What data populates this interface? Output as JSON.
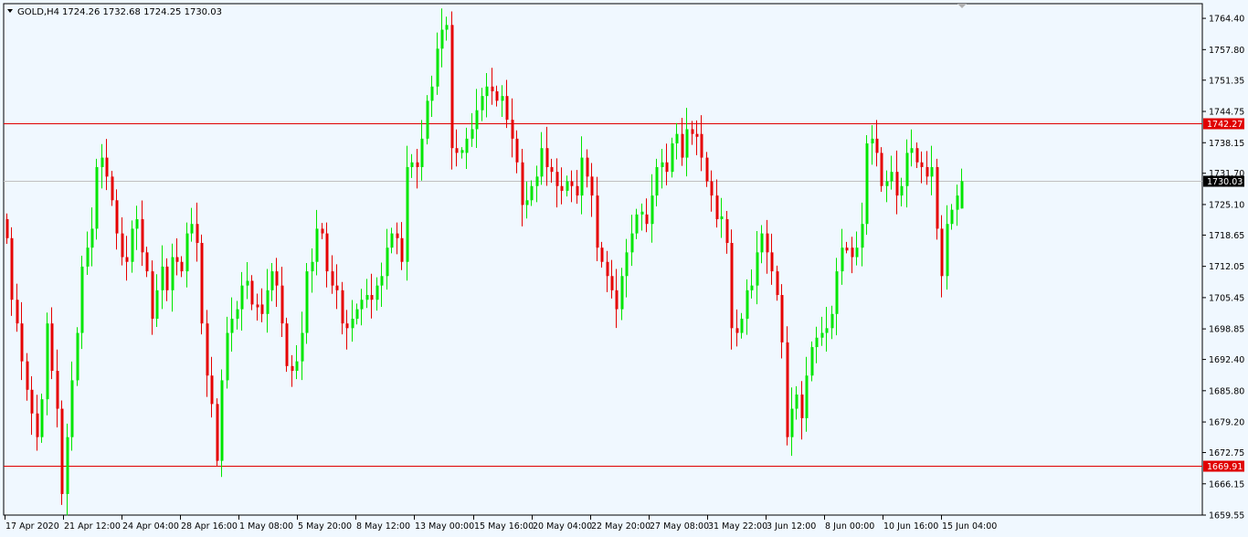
{
  "header": {
    "symbol": "GOLD,H4",
    "ohlc": "1724.26 1732.68 1724.25 1730.03"
  },
  "chart_data": {
    "type": "candlestick",
    "symbol": "GOLD",
    "timeframe": "H4",
    "ylim": [
      1659.55,
      1767.5
    ],
    "y_ticks": [
      1764.4,
      1757.8,
      1751.35,
      1744.75,
      1738.15,
      1731.7,
      1725.1,
      1718.65,
      1712.05,
      1705.45,
      1698.85,
      1692.4,
      1685.8,
      1679.2,
      1672.75,
      1666.15,
      1659.55
    ],
    "x_ticks": [
      "17 Apr 2020",
      "21 Apr 12:00",
      "24 Apr 04:00",
      "28 Apr 16:00",
      "1 May 08:00",
      "5 May 20:00",
      "8 May 12:00",
      "13 May 00:00",
      "15 May 16:00",
      "20 May 04:00",
      "22 May 20:00",
      "27 May 08:00",
      "31 May 22:00",
      "3 Jun 12:00",
      "8 Jun 00:00",
      "10 Jun 16:00",
      "15 Jun 04:00"
    ],
    "horizontal_lines": [
      {
        "price": 1742.27,
        "label": "1742.27",
        "color": "#e00000"
      },
      {
        "price": 1669.91,
        "label": "1669.91",
        "color": "#e00000"
      }
    ],
    "current_price": {
      "price": 1730.03,
      "label": "1730.03",
      "line_color": "#c0c0c0",
      "label_bg": "#000000"
    },
    "bull_color": "#00e600",
    "bear_color": "#e60000",
    "closes": [
      1718,
      1705,
      1700,
      1692,
      1686,
      1681,
      1676,
      1684,
      1700,
      1690,
      1682,
      1664,
      1676,
      1688,
      1698,
      1712,
      1716,
      1720,
      1733,
      1735,
      1731,
      1726,
      1719,
      1714,
      1713,
      1720,
      1722,
      1715,
      1711,
      1701,
      1707,
      1712,
      1707,
      1714,
      1713,
      1711,
      1719,
      1721,
      1717,
      1700,
      1689,
      1683,
      1671,
      1688,
      1698,
      1701,
      1703,
      1708,
      1709,
      1704,
      1704,
      1702,
      1707,
      1711,
      1708,
      1700,
      1691,
      1690,
      1692,
      1698,
      1711,
      1713,
      1720,
      1719,
      1711,
      1708,
      1707,
      1700,
      1699,
      1701,
      1703,
      1705,
      1706,
      1705,
      1708,
      1710,
      1716,
      1719,
      1718,
      1713,
      1733,
      1734,
      1733,
      1739,
      1747,
      1750,
      1758,
      1762,
      1763,
      1737,
      1736,
      1736,
      1739,
      1741,
      1745,
      1748,
      1750,
      1749,
      1747,
      1748,
      1743,
      1739,
      1734,
      1725,
      1726,
      1729,
      1731,
      1737,
      1733,
      1732,
      1729,
      1728,
      1730,
      1729,
      1727,
      1735,
      1731,
      1727,
      1716,
      1713,
      1710,
      1707,
      1703,
      1710,
      1715,
      1719,
      1723,
      1723,
      1721,
      1727,
      1733,
      1734,
      1732,
      1738,
      1740,
      1735,
      1741,
      1740,
      1740,
      1735,
      1730,
      1727,
      1722,
      1722,
      1717,
      1699,
      1698,
      1701,
      1707,
      1708,
      1715,
      1719,
      1715,
      1711,
      1706,
      1696,
      1676,
      1682,
      1685,
      1680,
      1689,
      1695,
      1697,
      1698,
      1699,
      1702,
      1711,
      1716,
      1716,
      1714,
      1716,
      1721,
      1738,
      1739,
      1736,
      1729,
      1730,
      1732,
      1727,
      1729,
      1736,
      1737,
      1734,
      1733,
      1731,
      1733,
      1720,
      1710,
      1721,
      1724,
      1727,
      1730
    ],
    "last_candle": {
      "open": 1724.26,
      "high": 1732.68,
      "low": 1724.25,
      "close": 1730.03
    }
  }
}
